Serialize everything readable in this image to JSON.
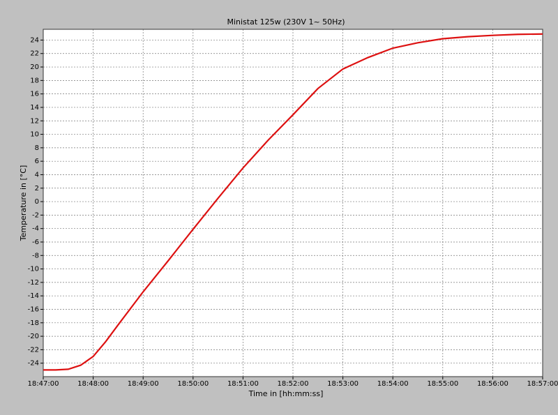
{
  "chart_data": {
    "type": "line",
    "title": "Ministat 125w (230V 1~ 50Hz)",
    "x_label": "Time in [hh:mm:ss]",
    "y_label": "Temperature in [°C]",
    "x": [
      "18:47:00",
      "18:47:15",
      "18:47:30",
      "18:47:45",
      "18:48:00",
      "18:48:15",
      "18:48:30",
      "18:49:00",
      "18:49:30",
      "18:50:00",
      "18:50:30",
      "18:51:00",
      "18:51:30",
      "18:52:00",
      "18:52:30",
      "18:53:00",
      "18:53:30",
      "18:54:00",
      "18:54:30",
      "18:55:00",
      "18:55:30",
      "18:56:00",
      "18:56:30",
      "18:57:00"
    ],
    "series": [
      {
        "name": "Temperature",
        "color": "#dd1111",
        "values": [
          -25,
          -25,
          -24.9,
          -24.3,
          -23,
          -20.8,
          -18.3,
          -13.4,
          -8.8,
          -4.1,
          0.5,
          5,
          9.1,
          12.9,
          16.8,
          19.7,
          21.4,
          22.8,
          23.6,
          24.2,
          24.5,
          24.7,
          24.85,
          24.9
        ]
      }
    ],
    "xlim": [
      "18:47:00",
      "18:57:00"
    ],
    "xticks": [
      "18:47:00",
      "18:48:00",
      "18:49:00",
      "18:50:00",
      "18:51:00",
      "18:52:00",
      "18:53:00",
      "18:54:00",
      "18:55:00",
      "18:56:00",
      "18:57:00"
    ],
    "ylim": [
      -26,
      25.6
    ],
    "yticks": [
      -24,
      -22,
      -20,
      -18,
      -16,
      -14,
      -12,
      -10,
      -8,
      -6,
      -4,
      -2,
      0,
      2,
      4,
      6,
      8,
      10,
      12,
      14,
      16,
      18,
      20,
      22,
      24
    ],
    "grid": true
  }
}
